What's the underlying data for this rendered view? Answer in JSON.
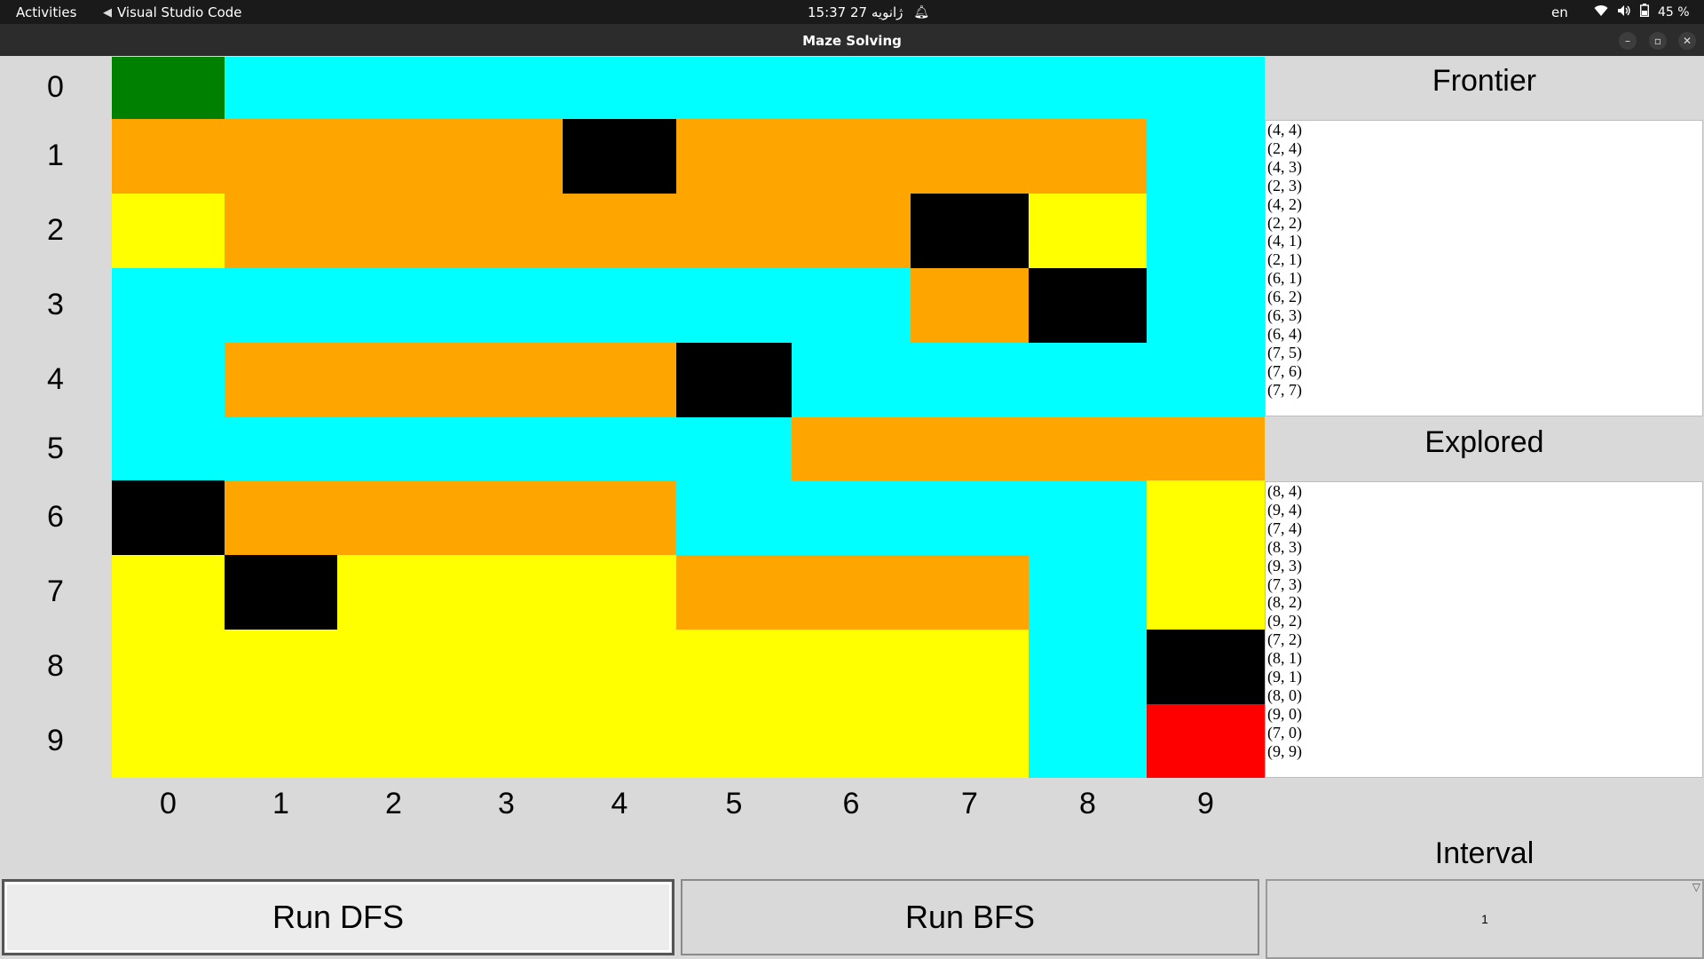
{
  "topbar": {
    "activities": "Activities",
    "app_name": "Visual Studio Code",
    "clock": "15:37  27 ژانویه",
    "language": "en",
    "battery": "45 %",
    "icons": [
      "vscode-icon",
      "bell-icon",
      "wifi-icon",
      "volume-icon",
      "battery-icon"
    ]
  },
  "window": {
    "title": "Maze Solving",
    "buttons": [
      "minimize",
      "maximize",
      "close"
    ]
  },
  "maze": {
    "rows": 10,
    "cols": 10,
    "row_labels": [
      "0",
      "1",
      "2",
      "3",
      "4",
      "5",
      "6",
      "7",
      "8",
      "9"
    ],
    "col_labels": [
      "0",
      "1",
      "2",
      "3",
      "4",
      "5",
      "6",
      "7",
      "8",
      "9"
    ],
    "legend_colors": {
      "G": "#008000",
      "C": "#00ffff",
      "O": "#ffa500",
      "Y": "#ffff00",
      "B": "#000000",
      "R": "#ff0000"
    },
    "grid": [
      [
        "G",
        "C",
        "C",
        "C",
        "C",
        "C",
        "C",
        "C",
        "C",
        "C"
      ],
      [
        "O",
        "O",
        "O",
        "O",
        "B",
        "O",
        "O",
        "O",
        "O",
        "C"
      ],
      [
        "Y",
        "O",
        "O",
        "O",
        "O",
        "O",
        "O",
        "B",
        "Y",
        "C"
      ],
      [
        "C",
        "C",
        "C",
        "C",
        "C",
        "C",
        "C",
        "O",
        "B",
        "C"
      ],
      [
        "C",
        "O",
        "O",
        "O",
        "O",
        "B",
        "C",
        "C",
        "C",
        "C"
      ],
      [
        "C",
        "C",
        "C",
        "C",
        "C",
        "C",
        "O",
        "O",
        "O",
        "O"
      ],
      [
        "B",
        "O",
        "O",
        "O",
        "O",
        "C",
        "C",
        "C",
        "C",
        "Y"
      ],
      [
        "Y",
        "B",
        "Y",
        "Y",
        "Y",
        "O",
        "O",
        "O",
        "C",
        "Y"
      ],
      [
        "Y",
        "Y",
        "Y",
        "Y",
        "Y",
        "Y",
        "Y",
        "Y",
        "C",
        "B"
      ],
      [
        "Y",
        "Y",
        "Y",
        "Y",
        "Y",
        "Y",
        "Y",
        "Y",
        "C",
        "R"
      ]
    ]
  },
  "frontier": {
    "title": "Frontier",
    "items": [
      "(4, 4)",
      "(2, 4)",
      "(4, 3)",
      "(2, 3)",
      "(4, 2)",
      "(2, 2)",
      "(4, 1)",
      "(2, 1)",
      "(6, 1)",
      "(6, 2)",
      "(6, 3)",
      "(6, 4)",
      "(7, 5)",
      "(7, 6)",
      "(7, 7)"
    ]
  },
  "explored": {
    "title": "Explored",
    "items": [
      "(8, 4)",
      "(9, 4)",
      "(7, 4)",
      "(8, 3)",
      "(9, 3)",
      "(7, 3)",
      "(8, 2)",
      "(9, 2)",
      "(7, 2)",
      "(8, 1)",
      "(9, 1)",
      "(8, 0)",
      "(9, 0)",
      "(7, 0)",
      "(9, 9)"
    ]
  },
  "controls": {
    "run_dfs_label": "Run DFS",
    "run_bfs_label": "Run BFS",
    "interval_label": "Interval",
    "interval_value": "1"
  }
}
